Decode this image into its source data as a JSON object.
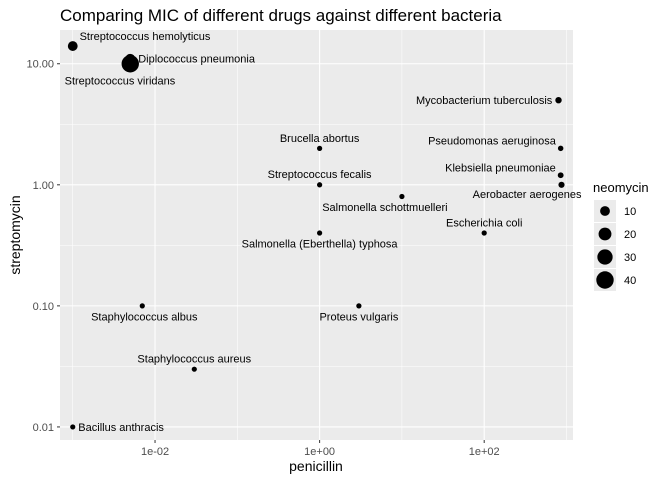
{
  "chart_data": {
    "type": "scatter",
    "title": "Comparing MIC of different drugs against different bacteria",
    "xlabel": "penicillin",
    "ylabel": "streptomycin",
    "x_scale": "log10",
    "y_scale": "log10",
    "xlim": [
      0.0007,
      1200
    ],
    "ylim": [
      0.0078,
      19
    ],
    "x_ticks": [
      0.01,
      1,
      100
    ],
    "x_tick_labels": [
      "1e-02",
      "1e+00",
      "1e+02"
    ],
    "y_ticks": [
      0.01,
      0.1,
      1,
      10
    ],
    "y_tick_labels": [
      "0.01",
      "0.10",
      "1.00",
      "10.00"
    ],
    "grid": true,
    "legend_position": "right",
    "size_legend": {
      "title": "neomycin",
      "values": [
        10,
        20,
        30,
        40
      ],
      "labels": [
        "10",
        "20",
        "30",
        "40"
      ]
    },
    "points": [
      {
        "name": "Aerobacter aerogenes",
        "penicillin": 870,
        "streptomycin": 1,
        "neomycin": 1.6
      },
      {
        "name": "Brucella abortus",
        "penicillin": 1,
        "streptomycin": 2,
        "neomycin": 0.02
      },
      {
        "name": "Bacillus anthracis",
        "penicillin": 0.001,
        "streptomycin": 0.01,
        "neomycin": 0.007
      },
      {
        "name": "Diplococcus pneumonia",
        "penicillin": 0.005,
        "streptomycin": 11,
        "neomycin": 10
      },
      {
        "name": "Escherichia coli",
        "penicillin": 100,
        "streptomycin": 0.4,
        "neomycin": 0.1
      },
      {
        "name": "Klebsiella pneumoniae",
        "penicillin": 850,
        "streptomycin": 1.2,
        "neomycin": 1
      },
      {
        "name": "Mycobacterium tuberculosis",
        "penicillin": 800,
        "streptomycin": 5,
        "neomycin": 2
      },
      {
        "name": "Proteus vulgaris",
        "penicillin": 3,
        "streptomycin": 0.1,
        "neomycin": 0.1
      },
      {
        "name": "Pseudomonas aeruginosa",
        "penicillin": 850,
        "streptomycin": 2,
        "neomycin": 0.4
      },
      {
        "name": "Salmonella (Eberthella) typhosa",
        "penicillin": 1,
        "streptomycin": 0.4,
        "neomycin": 0.008
      },
      {
        "name": "Salmonella schottmuelleri",
        "penicillin": 10,
        "streptomycin": 0.8,
        "neomycin": 0.09
      },
      {
        "name": "Staphylococcus albus",
        "penicillin": 0.007,
        "streptomycin": 0.1,
        "neomycin": 0.001
      },
      {
        "name": "Staphylococcus aureus",
        "penicillin": 0.03,
        "streptomycin": 0.03,
        "neomycin": 0.001
      },
      {
        "name": "Streptococcus fecalis",
        "penicillin": 1,
        "streptomycin": 1,
        "neomycin": 0.1
      },
      {
        "name": "Streptococcus hemolyticus",
        "penicillin": 0.001,
        "streptomycin": 14,
        "neomycin": 10
      },
      {
        "name": "Streptococcus viridans",
        "penicillin": 0.005,
        "streptomycin": 10,
        "neomycin": 40
      }
    ],
    "label_placement": {
      "Aerobacter aerogenes": "below-left",
      "Brucella abortus": "above",
      "Bacillus anthracis": "right",
      "Diplococcus pneumonia": "right",
      "Escherichia coli": "above",
      "Klebsiella pneumoniae": "above-left",
      "Mycobacterium tuberculosis": "left",
      "Proteus vulgaris": "below",
      "Pseudomonas aeruginosa": "above-left",
      "Salmonella (Eberthella) typhosa": "below",
      "Salmonella schottmuelleri": "below-left",
      "Staphylococcus albus": "below-left",
      "Staphylococcus aureus": "above",
      "Streptococcus fecalis": "above",
      "Streptococcus hemolyticus": "above-right",
      "Streptococcus viridans": "below-left"
    },
    "colors": {
      "panel": "#ebebeb",
      "grid_major": "#ffffff",
      "points": "#000000"
    }
  }
}
